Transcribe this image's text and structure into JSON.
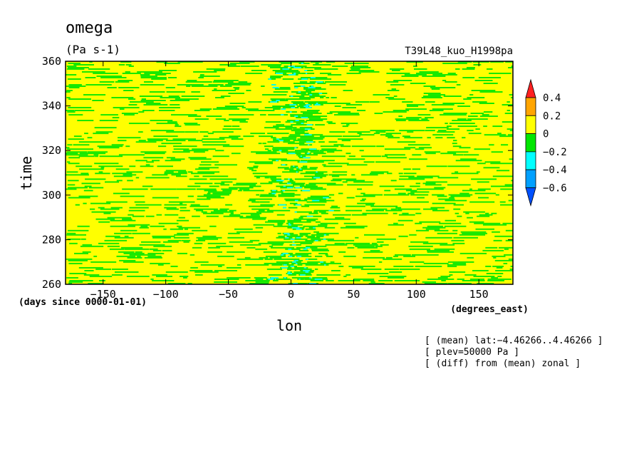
{
  "chart_data": {
    "type": "heatmap",
    "title": "omega",
    "units": "(Pa s-1)",
    "experiment": "T39L48_kuo_H1998pa",
    "xlabel": "lon",
    "x_units": "(degrees_east)",
    "ylabel": "time",
    "y_units": "(days since 0000-01-01)",
    "xlim": [
      -180,
      177.2
    ],
    "ylim": [
      260,
      360
    ],
    "x_ticks": [
      -150,
      -100,
      -50,
      0,
      50,
      100,
      150
    ],
    "y_ticks": [
      260,
      280,
      300,
      320,
      340,
      360
    ],
    "levels": [
      -0.6,
      -0.4,
      -0.2,
      0,
      0.2,
      0.4
    ],
    "colorbar": [
      {
        "range": "> 0.4",
        "color": "#ff2020"
      },
      {
        "range": "0.2 – 0.4",
        "color": "#ffa500"
      },
      {
        "range": "0 – 0.2",
        "color": "#ffff00"
      },
      {
        "range": "-0.2 – 0",
        "color": "#00e600"
      },
      {
        "range": "-0.4 – -0.2",
        "color": "#00ffff"
      },
      {
        "range": "-0.6 – -0.4",
        "color": "#00a0ff"
      },
      {
        "range": "< -0.6",
        "color": "#0050ff"
      }
    ],
    "colorbar_labels": [
      "0.4",
      "0.2",
      "0",
      "−0.2",
      "−0.4",
      "−0.6"
    ],
    "pattern": "field dominated by 0 – 0.2 (yellow) and -0.2 – 0 (green) streaks; band of -0.4 – -0.2 (cyan) values near lon 0",
    "annotations": [
      "[ (mean) lat:−4.46266..4.46266 ]",
      "[ plev=50000 Pa ]",
      "[ (diff) from (mean) zonal ]"
    ],
    "grid": false
  }
}
